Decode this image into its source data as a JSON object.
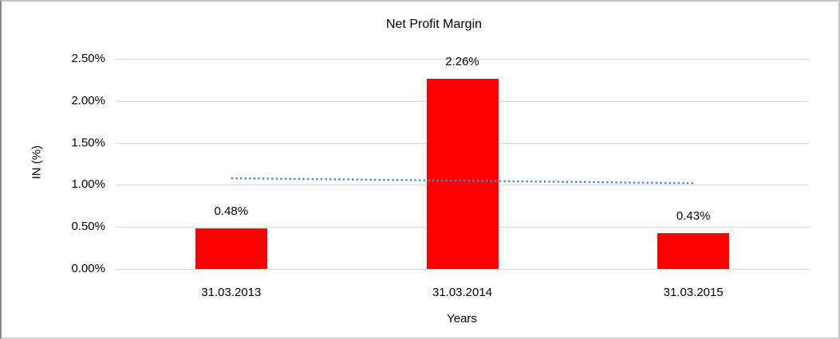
{
  "window": {
    "background": "#ffffff",
    "frame_border_color": "#c6c6c6"
  },
  "chart_data": {
    "type": "bar",
    "title": "Net Profit Margin",
    "xlabel": "Years",
    "ylabel": "IN (%)",
    "categories": [
      "31.03.2013",
      "31.03.2014",
      "31.03.2015"
    ],
    "values": [
      0.48,
      2.26,
      0.43
    ],
    "data_labels": [
      "0.48%",
      "2.26%",
      "0.43%"
    ],
    "ylim": [
      0,
      2.5
    ],
    "ytick_step": 0.5,
    "ytick_labels": [
      "0.00%",
      "0.50%",
      "1.00%",
      "1.50%",
      "2.00%",
      "2.50%"
    ],
    "grid": true,
    "legend": "none",
    "bar_color": "#ff0000",
    "gridline_color": "#d9d9d9",
    "text_color": "#000000",
    "trendline": {
      "type": "linear",
      "style": "dotted",
      "color": "#4a86c8",
      "start_value": 1.08,
      "end_value": 1.02
    }
  }
}
